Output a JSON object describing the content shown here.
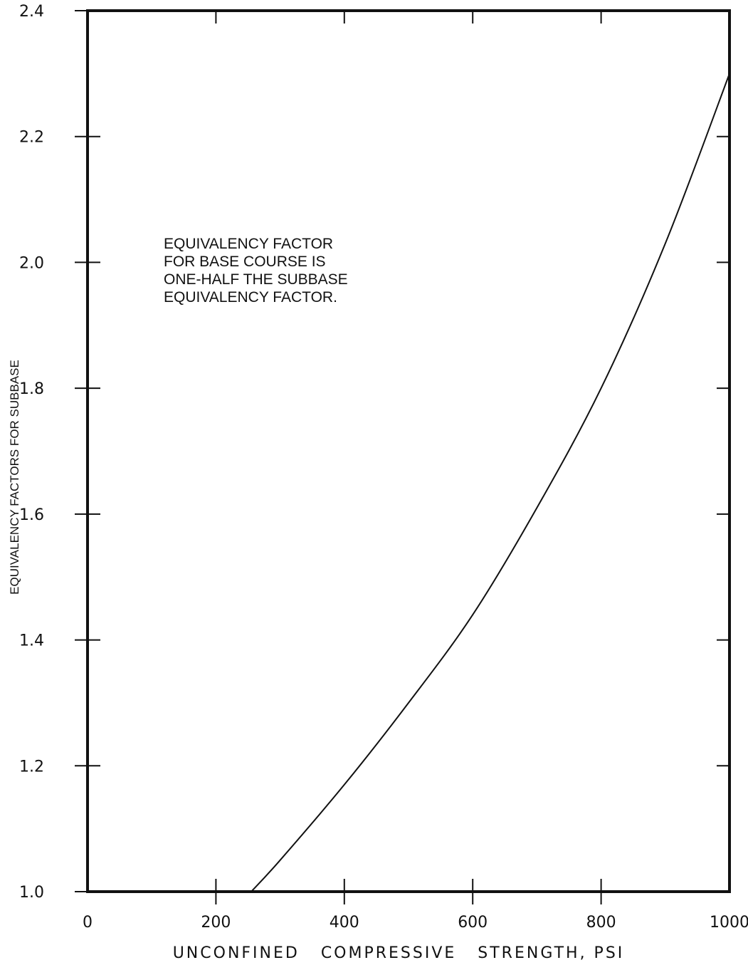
{
  "chart_data": {
    "type": "line",
    "title": "",
    "xlabel": "UNCONFINED   COMPRESSIVE   STRENGTH, PSI",
    "ylabel": "EQUIVALENCY FACTORS FOR SUBBASE",
    "xlim": [
      0,
      1000
    ],
    "ylim": [
      1.0,
      2.4
    ],
    "x_ticks": [
      0,
      200,
      400,
      600,
      800,
      1000
    ],
    "x_tick_labels": [
      "0",
      "200",
      "400",
      "600",
      "800",
      "1000"
    ],
    "y_ticks": [
      1.0,
      1.2,
      1.4,
      1.6,
      1.8,
      2.0,
      2.2,
      2.4
    ],
    "y_tick_labels": [
      "1.0",
      "1.2",
      "1.4",
      "1.6",
      "1.8",
      "2.0",
      "2.2",
      "2.4"
    ],
    "grid": false,
    "annotation": [
      "EQUIVALENCY FACTOR",
      "FOR BASE COURSE IS",
      "ONE-HALF THE SUBBASE",
      "EQUIVALENCY FACTOR."
    ],
    "series": [
      {
        "x": [
          255,
          300,
          400,
          500,
          600,
          700,
          800,
          900,
          1000
        ],
        "y": [
          1.0,
          1.05,
          1.17,
          1.3,
          1.44,
          1.61,
          1.8,
          2.03,
          2.3
        ]
      }
    ]
  }
}
